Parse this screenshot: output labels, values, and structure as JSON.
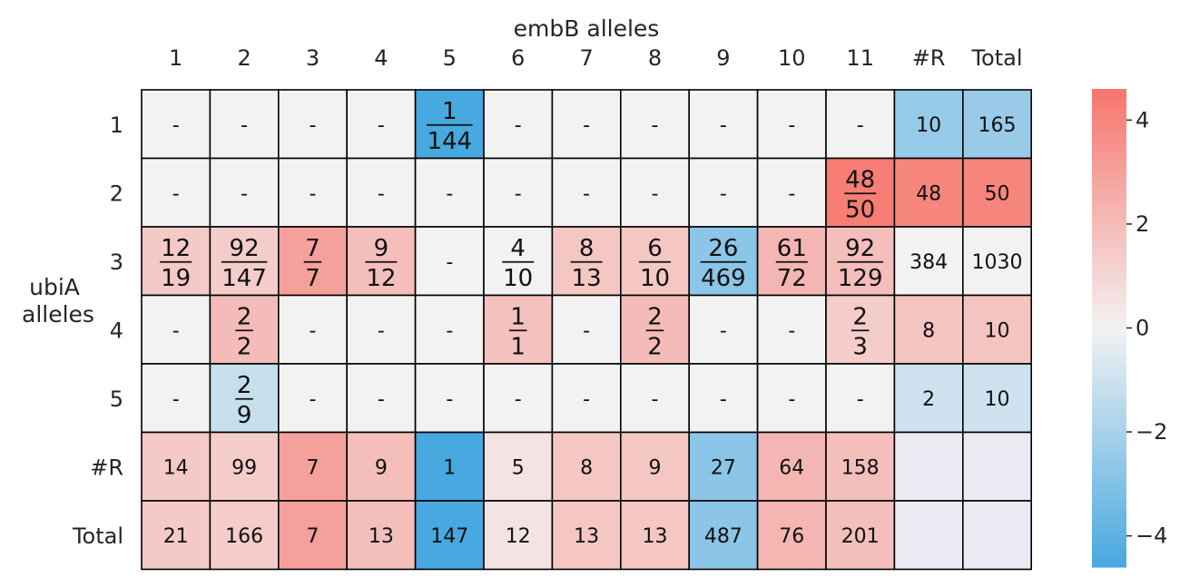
{
  "chart_data": {
    "type": "heatmap",
    "title": "",
    "xlabel": "embB alleles",
    "ylabel_lines": [
      "ubiA",
      "alleles"
    ],
    "col_labels": [
      "1",
      "2",
      "3",
      "4",
      "5",
      "6",
      "7",
      "8",
      "9",
      "10",
      "11",
      "#R",
      "Total"
    ],
    "row_labels": [
      "1",
      "2",
      "3",
      "4",
      "5",
      "#R",
      "Total"
    ],
    "cells": [
      [
        "-",
        "-",
        "-",
        "-",
        "1/144",
        "-",
        "-",
        "-",
        "-",
        "-",
        "-",
        "10",
        "165"
      ],
      [
        "-",
        "-",
        "-",
        "-",
        "-",
        "-",
        "-",
        "-",
        "-",
        "-",
        "48/50",
        "48",
        "50"
      ],
      [
        "12/19",
        "92/147",
        "7/7",
        "9/12",
        "-",
        "4/10",
        "8/13",
        "6/10",
        "26/469",
        "61/72",
        "92/129",
        "384",
        "1030"
      ],
      [
        "-",
        "2/2",
        "-",
        "-",
        "-",
        "1/1",
        "-",
        "2/2",
        "-",
        "-",
        "2/3",
        "8",
        "10"
      ],
      [
        "-",
        "2/9",
        "-",
        "-",
        "-",
        "-",
        "-",
        "-",
        "-",
        "-",
        "-",
        "2",
        "10"
      ],
      [
        "14",
        "99",
        "7",
        "9",
        "1",
        "5",
        "8",
        "9",
        "27",
        "64",
        "158",
        "",
        ""
      ],
      [
        "21",
        "166",
        "7",
        "13",
        "147",
        "12",
        "13",
        "13",
        "487",
        "76",
        "201",
        "",
        ""
      ]
    ],
    "values": [
      [
        null,
        null,
        null,
        null,
        -4.6,
        null,
        null,
        null,
        null,
        null,
        null,
        -2.5,
        -2.4
      ],
      [
        null,
        null,
        null,
        null,
        null,
        null,
        null,
        null,
        null,
        null,
        4.3,
        4.0,
        4.0
      ],
      [
        1.5,
        1.4,
        3.0,
        1.9,
        null,
        0.0,
        1.6,
        1.6,
        -2.8,
        2.2,
        1.9,
        null,
        null
      ],
      [
        null,
        2.0,
        null,
        null,
        null,
        1.8,
        null,
        2.0,
        null,
        null,
        1.4,
        1.7,
        1.7
      ],
      [
        null,
        -1.2,
        null,
        null,
        null,
        null,
        null,
        null,
        null,
        null,
        null,
        -1.0,
        -1.0
      ],
      [
        1.5,
        1.4,
        3.0,
        1.9,
        -4.6,
        0.5,
        1.6,
        1.6,
        -2.8,
        2.2,
        1.9,
        "na",
        "na"
      ],
      [
        1.5,
        1.4,
        3.0,
        1.9,
        -4.6,
        0.5,
        1.6,
        1.6,
        -2.8,
        2.2,
        1.9,
        "na",
        "na"
      ]
    ],
    "colorbar": {
      "range": [
        -4.6,
        4.6
      ],
      "ticks": [
        4,
        2,
        0,
        -2,
        -4
      ],
      "tick_labels": [
        "4",
        "2",
        "0",
        "−2",
        "−4"
      ]
    },
    "colors": {
      "neg": "#48a8e0",
      "mid": "#f2f2f2",
      "pos": "#f7756c",
      "missing": "#f2f2f2",
      "na": "#eaeaf2",
      "grid": "#000000"
    }
  }
}
